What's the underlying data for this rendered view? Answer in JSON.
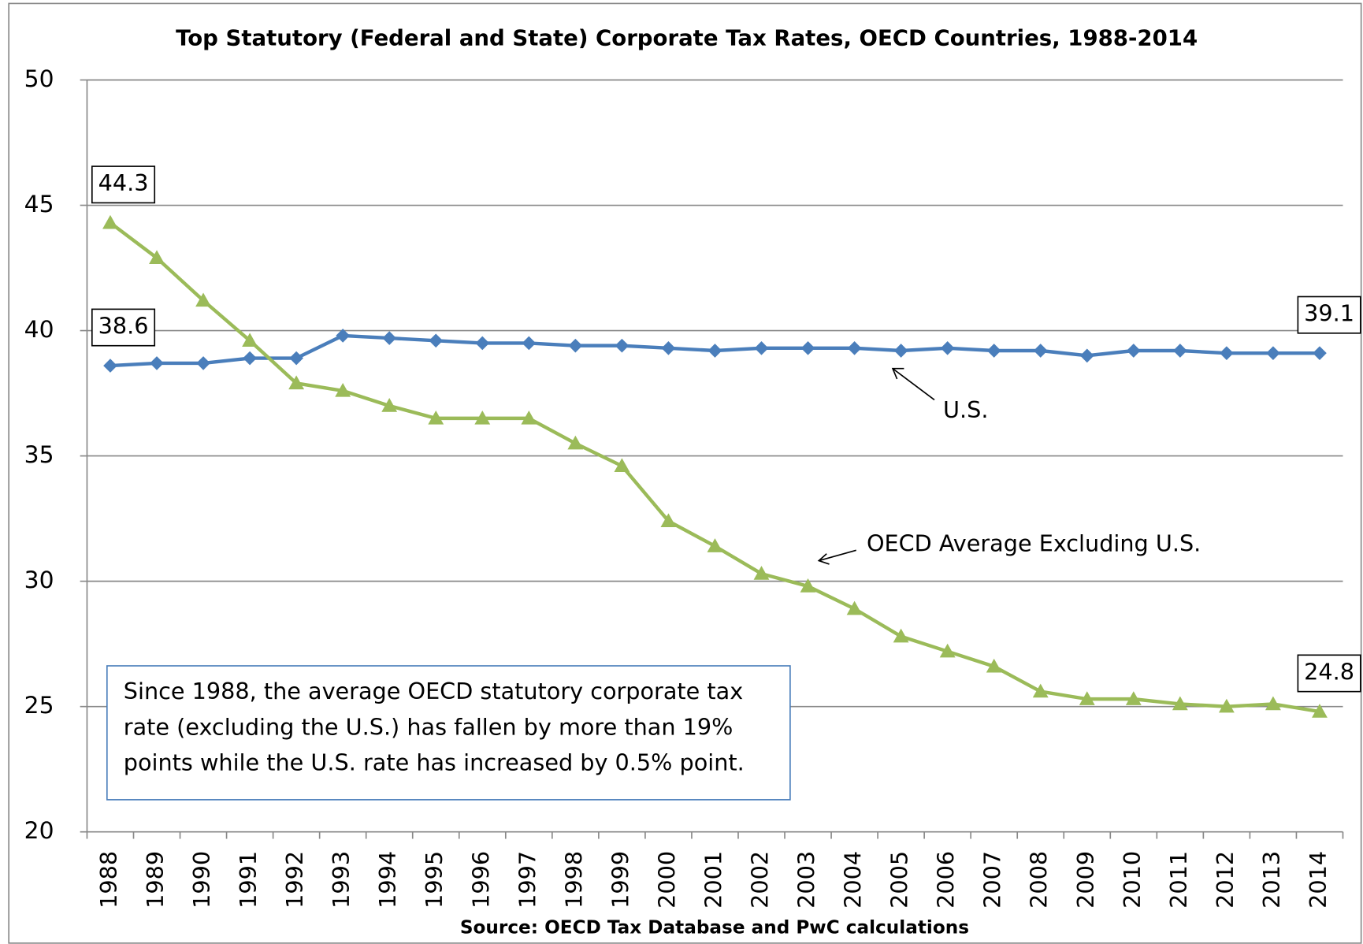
{
  "chart_data": {
    "type": "line",
    "title": "Top Statutory (Federal and State) Corporate Tax Rates, OECD Countries, 1988-2014",
    "x_label": "Source:  OECD Tax Database and PwC calculations",
    "categories": [
      "1988",
      "1989",
      "1990",
      "1991",
      "1992",
      "1993",
      "1994",
      "1995",
      "1996",
      "1997",
      "1998",
      "1999",
      "2000",
      "2001",
      "2002",
      "2003",
      "2004",
      "2005",
      "2006",
      "2007",
      "2008",
      "2009",
      "2010",
      "2011",
      "2012",
      "2013",
      "2014"
    ],
    "series": [
      {
        "name": "U.S.",
        "color": "#4a7ebb",
        "marker": "diamond",
        "values": [
          38.6,
          38.7,
          38.7,
          38.9,
          38.9,
          39.8,
          39.7,
          39.6,
          39.5,
          39.5,
          39.4,
          39.4,
          39.3,
          39.2,
          39.3,
          39.3,
          39.3,
          39.2,
          39.3,
          39.2,
          39.2,
          39.0,
          39.2,
          39.2,
          39.1,
          39.1,
          39.1
        ]
      },
      {
        "name": "OECD Average Excluding U.S.",
        "color": "#9bbb59",
        "marker": "triangle",
        "values": [
          44.3,
          42.9,
          41.2,
          39.6,
          37.9,
          37.6,
          37.0,
          36.5,
          36.5,
          36.5,
          35.5,
          34.6,
          32.4,
          31.4,
          30.3,
          29.8,
          28.9,
          27.8,
          27.2,
          26.6,
          25.6,
          25.3,
          25.3,
          25.1,
          25.0,
          25.1,
          24.8
        ]
      }
    ],
    "ylim": [
      20,
      50
    ],
    "yticks": [
      20,
      25,
      30,
      35,
      40,
      45,
      50
    ],
    "grid": true,
    "note": [
      "Since 1988, the average OECD statutory corporate tax",
      "rate (excluding the U.S.) has fallen by more than 19%",
      "points while the U.S. rate has increased by 0.5% point."
    ]
  }
}
